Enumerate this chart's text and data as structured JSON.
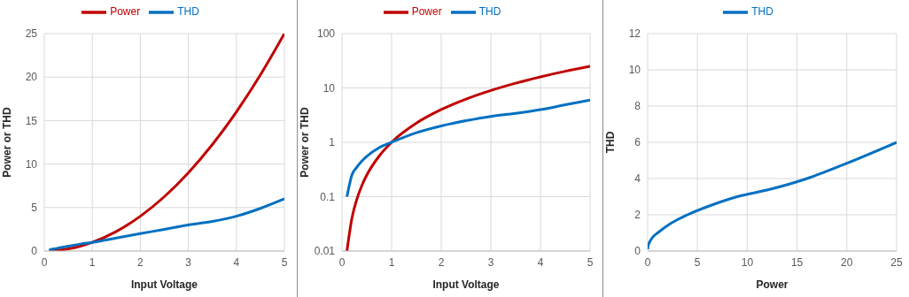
{
  "chart_data": [
    {
      "type": "line",
      "xlabel": "Input Voltage",
      "ylabel": "Power or THD",
      "x": [
        0.1,
        0.2,
        0.3,
        0.4,
        0.5,
        0.75,
        1,
        1.5,
        2,
        2.5,
        3,
        3.5,
        4,
        4.5,
        5
      ],
      "series": [
        {
          "name": "Power",
          "color": "#c00000",
          "values": [
            0.01,
            0.04,
            0.09,
            0.16,
            0.25,
            0.56,
            1,
            2.25,
            4,
            6.25,
            9,
            12.25,
            16,
            20.25,
            25
          ]
        },
        {
          "name": "THD",
          "color": "#0070c0",
          "values": [
            0.1,
            0.25,
            0.35,
            0.45,
            0.55,
            0.8,
            1,
            1.5,
            2,
            2.5,
            3,
            3.4,
            4,
            4.9,
            6
          ]
        }
      ],
      "xlim": [
        0,
        5
      ],
      "xticks": [
        0,
        1,
        2,
        3,
        4,
        5
      ],
      "ylim": [
        0,
        25
      ],
      "yticks": [
        0,
        5,
        10,
        15,
        20,
        25
      ],
      "grid": true,
      "legend": "top",
      "marker": "none",
      "line_style": "solid"
    },
    {
      "type": "line",
      "xlabel": "Input Voltage",
      "ylabel": "Power or THD",
      "x": [
        0.1,
        0.2,
        0.3,
        0.4,
        0.5,
        0.75,
        1,
        1.5,
        2,
        2.5,
        3,
        3.5,
        4,
        4.5,
        5
      ],
      "series": [
        {
          "name": "Power",
          "color": "#c00000",
          "values": [
            0.01,
            0.04,
            0.09,
            0.16,
            0.25,
            0.56,
            1,
            2.25,
            4,
            6.25,
            9,
            12.25,
            16,
            20.25,
            25
          ]
        },
        {
          "name": "THD",
          "color": "#0070c0",
          "values": [
            0.1,
            0.25,
            0.35,
            0.45,
            0.55,
            0.8,
            1,
            1.5,
            2,
            2.5,
            3,
            3.4,
            4,
            4.9,
            6
          ]
        }
      ],
      "xlim": [
        0,
        5
      ],
      "xticks": [
        0,
        1,
        2,
        3,
        4,
        5
      ],
      "ylim": [
        0.01,
        100
      ],
      "yticks": [
        0.01,
        0.1,
        1,
        10,
        100
      ],
      "log": "y",
      "grid": true,
      "legend": "top",
      "marker": "none",
      "line_style": "solid"
    },
    {
      "type": "line",
      "xlabel": "Power",
      "ylabel": "THD",
      "x": [
        0.01,
        0.04,
        0.09,
        0.16,
        0.25,
        0.56,
        1,
        2.25,
        4,
        6.25,
        9,
        12.25,
        16,
        20.25,
        25
      ],
      "series": [
        {
          "name": "THD",
          "color": "#0070c0",
          "values": [
            0.1,
            0.25,
            0.35,
            0.45,
            0.55,
            0.8,
            1,
            1.5,
            2,
            2.5,
            3,
            3.4,
            4,
            4.9,
            6
          ]
        }
      ],
      "xlim": [
        0,
        25
      ],
      "xticks": [
        0,
        5,
        10,
        15,
        20,
        25
      ],
      "ylim": [
        0,
        12
      ],
      "yticks": [
        0,
        2,
        4,
        6,
        8,
        10,
        12
      ],
      "grid": true,
      "legend": "top",
      "marker": "none",
      "line_style": "solid"
    }
  ]
}
